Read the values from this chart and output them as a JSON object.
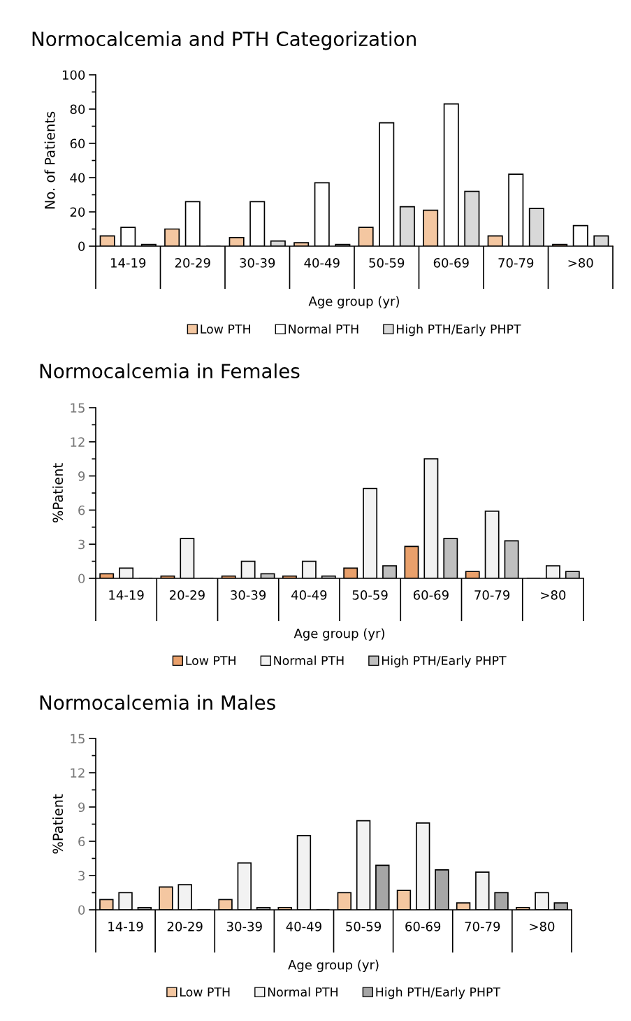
{
  "chart_data": [
    {
      "type": "bar",
      "title": "Normocalcemia and PTH Categorization",
      "xlabel": "Age group (yr)",
      "ylabel": "No. of Patients",
      "categories": [
        "14-19",
        "20-29",
        "30-39",
        "40-49",
        "50-59",
        "60-69",
        "70-79",
        ">80"
      ],
      "ylim": [
        0,
        100
      ],
      "yticks": [
        0,
        20,
        40,
        60,
        80,
        100
      ],
      "grid": false,
      "legend": "bottom",
      "series": [
        {
          "name": "Low PTH",
          "color": "#f4c7a1",
          "values": [
            6,
            10,
            5,
            2,
            11,
            21,
            6,
            1
          ]
        },
        {
          "name": "Normal PTH",
          "color": "#ffffff",
          "values": [
            11,
            26,
            26,
            37,
            72,
            83,
            42,
            12
          ]
        },
        {
          "name": "High PTH/Early PHPT",
          "color": "#d9d9d9",
          "values": [
            1,
            0,
            3,
            1,
            23,
            32,
            22,
            6
          ]
        }
      ]
    },
    {
      "type": "bar",
      "title": "Normocalcemia in Females",
      "xlabel": "Age group (yr)",
      "ylabel": "%Patient",
      "categories": [
        "14-19",
        "20-29",
        "30-39",
        "40-49",
        "50-59",
        "60-69",
        "70-79",
        ">80"
      ],
      "ylim": [
        0,
        15
      ],
      "yticks": [
        0,
        3,
        6,
        9,
        12,
        15
      ],
      "grid": false,
      "legend": "bottom",
      "series": [
        {
          "name": "Low PTH",
          "color": "#e9a06b",
          "values": [
            0.4,
            0.2,
            0.2,
            0.2,
            0.9,
            2.8,
            0.6,
            0
          ]
        },
        {
          "name": "Normal PTH",
          "color": "#f2f2f2",
          "values": [
            0.9,
            3.5,
            1.5,
            1.5,
            7.9,
            10.5,
            5.9,
            1.1
          ]
        },
        {
          "name": "High PTH/Early PHPT",
          "color": "#bfbfbf",
          "values": [
            0,
            0,
            0.4,
            0.2,
            1.1,
            3.5,
            3.3,
            0.6
          ]
        }
      ]
    },
    {
      "type": "bar",
      "title": "Normocalcemia in Males",
      "xlabel": "Age group (yr)",
      "ylabel": "%Patient",
      "categories": [
        "14-19",
        "20-29",
        "30-39",
        "40-49",
        "50-59",
        "60-69",
        "70-79",
        ">80"
      ],
      "ylim": [
        0,
        15
      ],
      "yticks": [
        0,
        3,
        6,
        9,
        12,
        15
      ],
      "grid": false,
      "legend": "bottom",
      "series": [
        {
          "name": "Low PTH",
          "color": "#f4c7a1",
          "values": [
            0.9,
            2.0,
            0.9,
            0.2,
            1.5,
            1.7,
            0.6,
            0.2
          ]
        },
        {
          "name": "Normal PTH",
          "color": "#f2f2f2",
          "values": [
            1.5,
            2.2,
            4.1,
            6.5,
            7.8,
            7.6,
            3.3,
            1.5
          ]
        },
        {
          "name": "High PTH/Early PHPT",
          "color": "#a6a6a6",
          "values": [
            0.2,
            0,
            0.2,
            0,
            3.9,
            3.5,
            1.5,
            0.6
          ]
        }
      ]
    }
  ]
}
